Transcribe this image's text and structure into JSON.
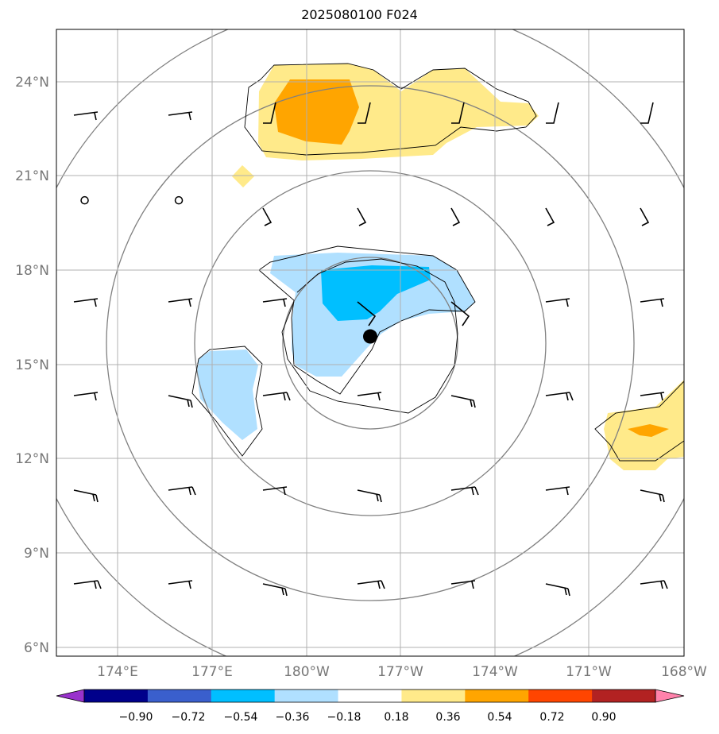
{
  "title": "2025080100 F024",
  "map": {
    "lat_labels": [
      "24°N",
      "21°N",
      "18°N",
      "15°N",
      "12°N",
      "9°N",
      "6°N"
    ],
    "lon_labels": [
      "174°E",
      "177°E",
      "180°W",
      "177°W",
      "174°W",
      "171°W",
      "168°W"
    ],
    "lon_range": [
      172,
      192
    ],
    "lat_range": [
      5.6,
      25.4
    ],
    "gridlines": true,
    "storm_center": {
      "lon": 182.0,
      "lat": 15.7
    },
    "calm_stations": [
      {
        "lon": 172.9,
        "lat": 20.0
      },
      {
        "lon": 175.9,
        "lat": 20.0
      }
    ]
  },
  "colorbar": {
    "ticks": [
      "−0.90",
      "−0.72",
      "−0.54",
      "−0.36",
      "−0.18",
      "0.18",
      "0.36",
      "0.54",
      "0.72",
      "0.90"
    ],
    "colors": [
      "#9932cc",
      "#00008b",
      "#3a5fcd",
      "#00bfff",
      "#b0e0ff",
      "#ffffff",
      "#ffea8a",
      "#ffa500",
      "#ff4500",
      "#b22222",
      "#ff82ab"
    ],
    "extend": "both"
  }
}
